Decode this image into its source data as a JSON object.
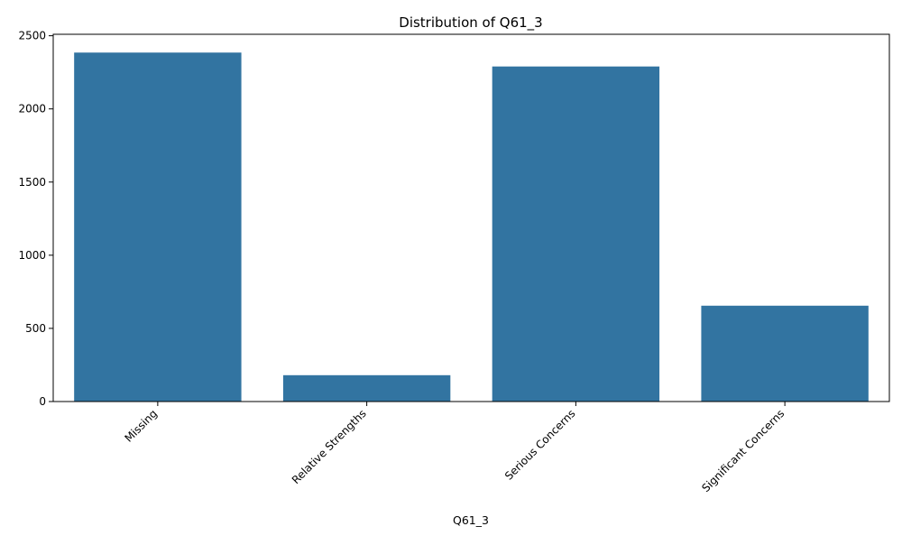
{
  "chart_data": {
    "type": "bar",
    "title": "Distribution of Q61_3",
    "xlabel": "Q61_3",
    "ylabel": "",
    "categories": [
      "Missing",
      "Relative Strengths",
      "Serious Concerns",
      "Significant Concerns"
    ],
    "values": [
      2385,
      180,
      2290,
      655
    ],
    "ylim": [
      0,
      2510
    ],
    "yticks": [
      0,
      500,
      1000,
      1500,
      2000,
      2500
    ],
    "bar_color": "#3274a1",
    "grid": false,
    "legend": "none"
  }
}
